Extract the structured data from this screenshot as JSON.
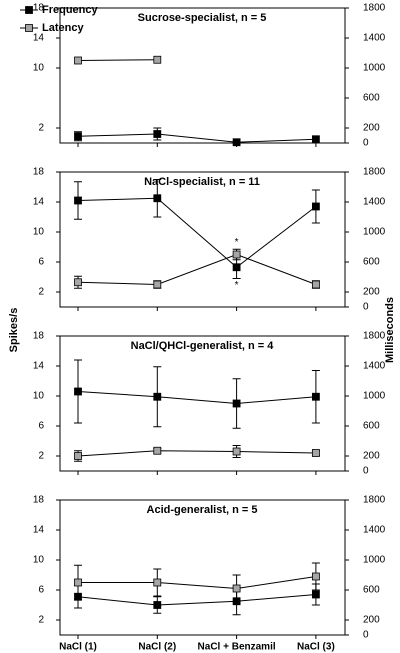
{
  "chart_data": [
    {
      "type": "line",
      "title": "Sucrose-specialist, n = 5",
      "ylim": [
        0,
        18
      ],
      "yticks": [
        2,
        10,
        14,
        18
      ],
      "y2lim": [
        0,
        1800
      ],
      "y2ticks": [
        0,
        200,
        600,
        1000,
        1400,
        1800
      ],
      "series": [
        {
          "name": "Frequency",
          "color": "#000000",
          "values": [
            0.9,
            1.2,
            0.1,
            0.5
          ],
          "errors": [
            0.6,
            0.8,
            null,
            null
          ]
        },
        {
          "name": "Latency",
          "color": "#a6a6a6",
          "axis": "y2",
          "values": [
            1100,
            1110,
            null,
            null
          ],
          "errors": [
            null,
            null,
            null,
            null
          ]
        }
      ]
    },
    {
      "type": "line",
      "title": "NaCl-specialist, n = 11",
      "ylabel": "Spikes/s",
      "y2label": "Milliseconds",
      "annotations": [
        "*",
        "*"
      ],
      "ylim": [
        0,
        18
      ],
      "yticks": [
        2,
        6,
        10,
        14,
        18
      ],
      "y2lim": [
        0,
        1800
      ],
      "y2ticks": [
        0,
        200,
        600,
        1000,
        1400,
        1800
      ],
      "series": [
        {
          "color": "#000000",
          "values": [
            14.2,
            14.5,
            5.3,
            13.4
          ],
          "errors": [
            2.5,
            2.5,
            1.5,
            2.2
          ]
        },
        {
          "color": "#a6a6a6",
          "axis": "y2",
          "values": [
            330,
            300,
            700,
            300
          ],
          "errors": [
            80,
            50,
            70,
            50
          ]
        }
      ]
    },
    {
      "type": "line",
      "title": "NaCl/QHCl-generalist, n = 4",
      "ylim": [
        0,
        18
      ],
      "yticks": [
        2,
        6,
        10,
        14,
        18
      ],
      "y2lim": [
        0,
        1800
      ],
      "y2ticks": [
        0,
        200,
        600,
        1000,
        1400,
        1800
      ],
      "series": [
        {
          "color": "#000000",
          "values": [
            10.6,
            9.9,
            9.0,
            9.9
          ],
          "errors": [
            4.2,
            4.0,
            3.3,
            3.5
          ]
        },
        {
          "color": "#a6a6a6",
          "axis": "y2",
          "values": [
            200,
            270,
            260,
            240
          ],
          "errors": [
            70,
            30,
            80,
            30
          ]
        }
      ]
    },
    {
      "type": "line",
      "title": "Acid-generalist, n = 5",
      "categories": [
        "NaCl (1)",
        "NaCl (2)",
        "NaCl + Benzamil",
        "NaCl (3)"
      ],
      "ylim": [
        0,
        18
      ],
      "yticks": [
        2,
        6,
        10,
        14,
        18
      ],
      "y2lim": [
        0,
        1800
      ],
      "y2ticks": [
        0,
        200,
        600,
        1000,
        1400,
        1800
      ],
      "series": [
        {
          "color": "#000000",
          "values": [
            5.1,
            4.0,
            4.5,
            5.4
          ],
          "errors": [
            1.5,
            1.1,
            1.8,
            1.4
          ]
        },
        {
          "color": "#a6a6a6",
          "axis": "y2",
          "values": [
            700,
            700,
            620,
            780
          ],
          "errors": [
            230,
            180,
            180,
            180
          ]
        }
      ]
    }
  ]
}
